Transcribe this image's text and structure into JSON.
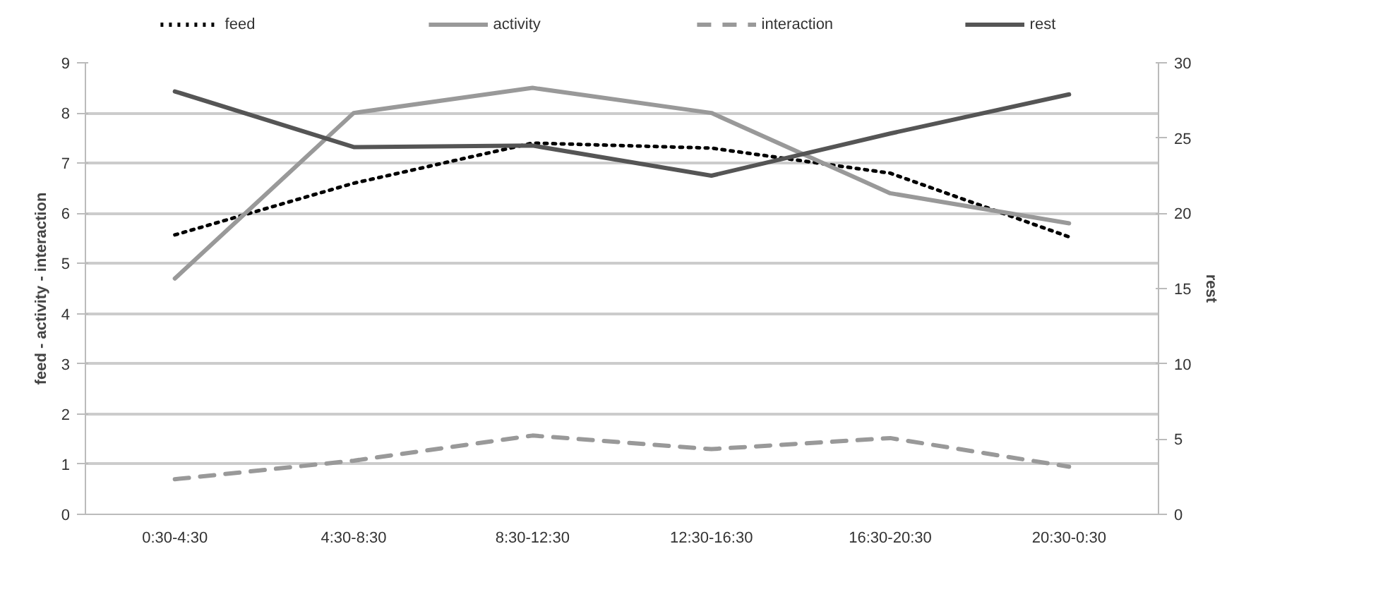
{
  "chart_data": {
    "type": "line",
    "categories": [
      "0:30-4:30",
      "4:30-8:30",
      "8:30-12:30",
      "12:30-16:30",
      "16:30-20:30",
      "20:30-0:30"
    ],
    "ylabel": "feed - activity - interaction",
    "y2label": "rest",
    "ylim": [
      0,
      9
    ],
    "yticks": [
      0,
      1,
      2,
      3,
      4,
      5,
      6,
      7,
      8,
      9
    ],
    "y2lim": [
      0,
      30
    ],
    "y2ticks": [
      0,
      5,
      10,
      15,
      20,
      25,
      30
    ],
    "grid": "y",
    "legend": "top",
    "marker": "none",
    "series": [
      {
        "name": "feed",
        "color": "#000000",
        "line_style": "dotted",
        "values": [
          5.57,
          6.6,
          7.4,
          7.3,
          6.8,
          5.53
        ]
      },
      {
        "name": "activity",
        "color": "#999999",
        "line_style": "solid",
        "values": [
          4.7,
          8.0,
          8.5,
          8.0,
          6.4,
          5.8
        ]
      },
      {
        "name": "interaction",
        "color": "#999999",
        "line_style": "dashed",
        "values": [
          0.7,
          1.07,
          1.57,
          1.3,
          1.52,
          0.95
        ]
      },
      {
        "name": "rest",
        "color": "#555555",
        "line_style": "solid",
        "axis": "y2",
        "values": [
          28.1,
          24.4,
          24.5,
          22.5,
          25.3,
          27.9
        ]
      }
    ]
  }
}
